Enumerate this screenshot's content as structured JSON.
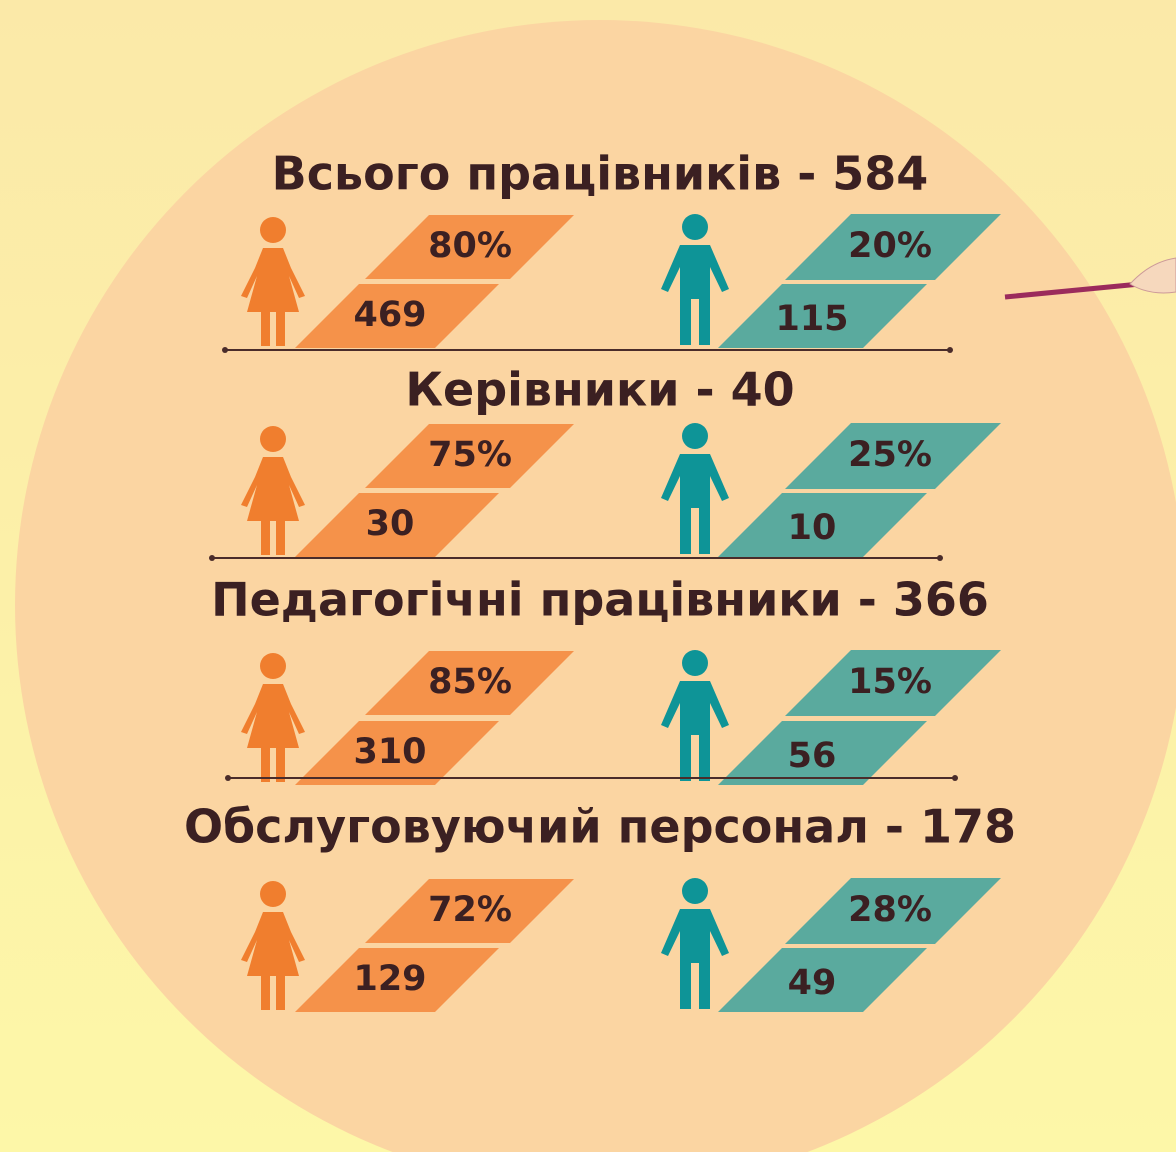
{
  "sections": [
    {
      "title": "Всього працівників - 584",
      "female_percent": "80%",
      "female_count": "469",
      "male_percent": "20%",
      "male_count": "115"
    },
    {
      "title": "Керівники - 40",
      "female_percent": "75%",
      "female_count": "30",
      "male_percent": "25%",
      "male_count": "10"
    },
    {
      "title": "Педагогічні працівники - 366",
      "female_percent": "85%",
      "female_count": "310",
      "male_percent": "15%",
      "male_count": "56"
    },
    {
      "title": "Обслуговуючий персонал - 178",
      "female_percent": "72%",
      "female_count": "129",
      "male_percent": "28%",
      "male_count": "49"
    }
  ]
}
